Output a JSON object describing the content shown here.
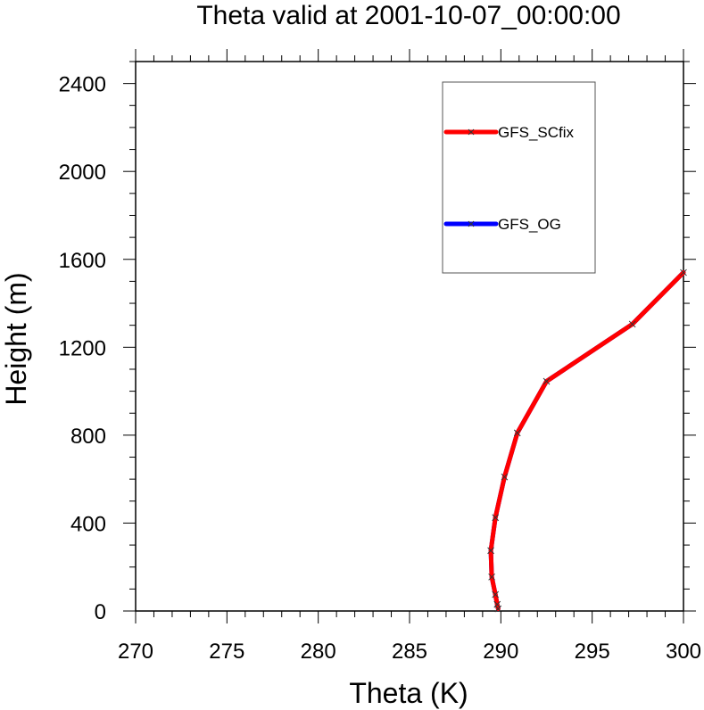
{
  "chart_data": {
    "type": "line",
    "title": "Theta valid at 2001-10-07_00:00:00",
    "xlabel": "Theta (K)",
    "ylabel": "Height (m)",
    "xlim": [
      270,
      300
    ],
    "ylim": [
      0,
      2500
    ],
    "x_ticks": [
      270,
      275,
      280,
      285,
      290,
      295,
      300
    ],
    "y_ticks": [
      0,
      400,
      800,
      1200,
      1600,
      2000,
      2400
    ],
    "grid": false,
    "legend_position": "top-right",
    "series": [
      {
        "name": "GFS_SCfix",
        "color": "#ff0000",
        "marker": "x",
        "points": [
          {
            "x": 289.85,
            "y": 10
          },
          {
            "x": 289.8,
            "y": 30
          },
          {
            "x": 289.7,
            "y": 75
          },
          {
            "x": 289.5,
            "y": 155
          },
          {
            "x": 289.45,
            "y": 275
          },
          {
            "x": 289.7,
            "y": 425
          },
          {
            "x": 290.2,
            "y": 610
          },
          {
            "x": 290.9,
            "y": 810
          },
          {
            "x": 292.5,
            "y": 1045
          },
          {
            "x": 297.2,
            "y": 1305
          },
          {
            "x": 300.0,
            "y": 1540
          }
        ]
      },
      {
        "name": "GFS_OG",
        "color": "#0000ff",
        "marker": "x",
        "points": [
          {
            "x": 289.85,
            "y": 10
          },
          {
            "x": 289.8,
            "y": 30
          },
          {
            "x": 289.7,
            "y": 75
          },
          {
            "x": 289.5,
            "y": 155
          },
          {
            "x": 289.45,
            "y": 275
          },
          {
            "x": 289.7,
            "y": 425
          },
          {
            "x": 290.2,
            "y": 610
          },
          {
            "x": 290.9,
            "y": 810
          },
          {
            "x": 292.5,
            "y": 1045
          },
          {
            "x": 297.2,
            "y": 1305
          },
          {
            "x": 300.0,
            "y": 1540
          }
        ]
      }
    ]
  }
}
